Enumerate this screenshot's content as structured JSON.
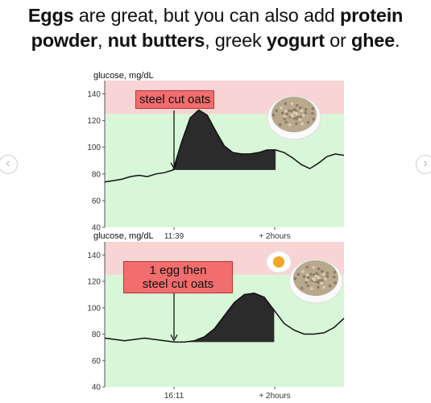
{
  "headline": {
    "line1_a": "Eggs",
    "line1_b": " are great, but you can also add ",
    "line1_c": "protein",
    "line2_a": "powder",
    "line2_b": ",  ",
    "line2_c": "nut butters",
    "line2_d": ", greek ",
    "line2_e": "yogurt",
    "line2_f": " or ",
    "line2_g": "ghee",
    "line2_h": "."
  },
  "nav": {
    "prev_icon": "chevron-left-icon",
    "next_icon": "chevron-right-icon",
    "prev_glyph": "‹",
    "next_glyph": "›"
  },
  "colors": {
    "high_zone": "#f8d4d4",
    "normal_zone": "#d8f7d8",
    "fill": "#2b2b2b",
    "annotation": "#f26d6d"
  },
  "chart_data": [
    {
      "type": "line",
      "ylabel": "glucose, mg/dL",
      "ylim": [
        40,
        150
      ],
      "yticks": [
        40,
        60,
        80,
        100,
        120,
        140
      ],
      "xticks": [
        "11:39",
        "+ 2hours"
      ],
      "annotation": "steel cut oats",
      "food_icons": [
        "oatmeal-bowl-icon"
      ],
      "series": [
        {
          "values": [
            74,
            75,
            76,
            78,
            79,
            78,
            80,
            81,
            83,
            104,
            122,
            128,
            124,
            112,
            101,
            96,
            95,
            95,
            96,
            98,
            98,
            96,
            92,
            87,
            84,
            88,
            93,
            95,
            94
          ]
        }
      ]
    },
    {
      "type": "line",
      "ylabel": "glucose, mg/dL",
      "ylim": [
        40,
        150
      ],
      "yticks": [
        40,
        60,
        80,
        100,
        120,
        140
      ],
      "xticks": [
        "16:11",
        "+ 2hours"
      ],
      "annotation": "1 egg then steel cut oats",
      "annotation_line1": "1 egg then",
      "annotation_line2": "steel cut oats",
      "food_icons": [
        "fried-egg-icon",
        "oatmeal-bowl-icon"
      ],
      "series": [
        {
          "values": [
            77,
            76,
            75,
            76,
            77,
            76,
            75,
            74,
            74,
            75,
            78,
            84,
            94,
            104,
            110,
            111,
            108,
            98,
            88,
            83,
            80,
            80,
            81,
            85,
            92
          ]
        }
      ]
    }
  ]
}
